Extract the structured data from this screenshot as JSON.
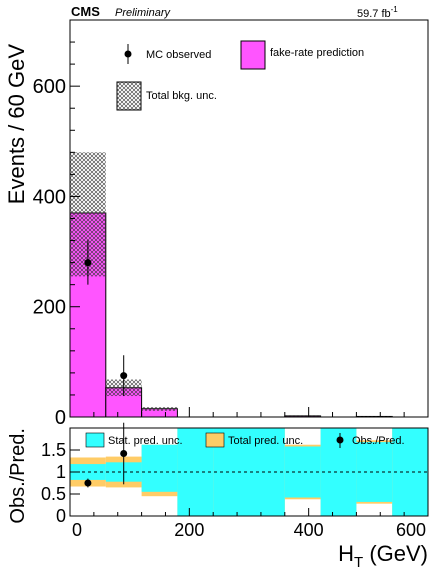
{
  "header": {
    "experiment": "CMS",
    "status": "Preliminary",
    "lumi": "59.7 fb",
    "lumi_sup": "-1"
  },
  "colors": {
    "prediction": "#ff55ff",
    "stat_band": "#33ffff",
    "total_band": "#ffcc66",
    "markers": "#000000"
  },
  "chart_data": [
    {
      "type": "bar",
      "panel": "main",
      "ylabel": "Events / 60 GeV",
      "xlim": [
        0,
        600
      ],
      "ylim": [
        0,
        720
      ],
      "yticks": [
        0,
        200,
        400,
        600
      ],
      "bin_edges": [
        0,
        60,
        120,
        180,
        240,
        300,
        360,
        420,
        480,
        540,
        600
      ],
      "legend": {
        "placement": "top",
        "entries": [
          "MC observed",
          "fake-rate prediction",
          "Total bkg. unc."
        ]
      },
      "series": [
        {
          "name": "fake-rate prediction",
          "style": "filled-histogram",
          "values": [
            370,
            53,
            15,
            0,
            0,
            0,
            2,
            0,
            1,
            0
          ]
        },
        {
          "name": "Total bkg. unc.",
          "style": "hatched-band",
          "low": [
            255,
            38,
            11,
            0,
            0,
            0,
            1,
            0,
            0.5,
            0
          ],
          "high": [
            480,
            68,
            18,
            0,
            0,
            0,
            3,
            0,
            1.5,
            0
          ]
        },
        {
          "name": "MC observed",
          "style": "points-with-errors",
          "x": [
            30,
            90
          ],
          "y": [
            280,
            75
          ],
          "err_low": [
            40,
            37
          ],
          "err_high": [
            40,
            37
          ]
        }
      ]
    },
    {
      "type": "bar",
      "panel": "ratio",
      "xlabel": "H",
      "xlabel_sub": "T",
      "xlabel_unit": " (GeV)",
      "ylabel": "Obs./Pred.",
      "xlim": [
        0,
        600
      ],
      "ylim": [
        0,
        2
      ],
      "yticks": [
        0,
        0.5,
        1,
        1.5
      ],
      "ytick_labels": [
        "0",
        "0.5",
        "1",
        "1.5"
      ],
      "xticks": [
        0,
        200,
        400,
        600
      ],
      "reference_line": 1,
      "legend": {
        "placement": "top",
        "entries": [
          "Stat. pred. unc.",
          "Total pred. unc.",
          "Obs./Pred."
        ]
      },
      "bin_edges": [
        0,
        60,
        120,
        180,
        240,
        300,
        360,
        420,
        480,
        540,
        600
      ],
      "series": [
        {
          "name": "Total pred. unc.",
          "low": [
            0.67,
            0.65,
            0.45,
            0,
            0,
            0,
            0.38,
            0,
            0.28,
            0
          ],
          "high": [
            1.33,
            1.35,
            1.62,
            2,
            2,
            2,
            1.62,
            2,
            1.72,
            2
          ]
        },
        {
          "name": "Stat. pred. unc.",
          "low": [
            0.82,
            0.78,
            0.55,
            0,
            0,
            0,
            0.42,
            0,
            0.32,
            0
          ],
          "high": [
            1.18,
            1.22,
            1.62,
            2,
            2,
            2,
            1.58,
            2,
            1.68,
            2
          ]
        },
        {
          "name": "Obs./Pred.",
          "x": [
            30,
            90
          ],
          "y": [
            0.75,
            1.42
          ],
          "err_low": [
            0.1,
            0.7
          ],
          "err_high": [
            0.1,
            0.7
          ]
        }
      ]
    }
  ]
}
